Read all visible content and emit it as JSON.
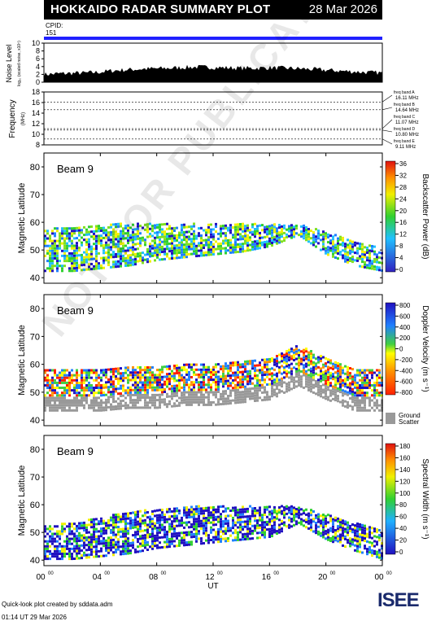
{
  "header": {
    "title": "HOKKAIDO RADAR SUMMARY PLOT",
    "date": "28 Mar 2026"
  },
  "cpid": {
    "label": "CPID:",
    "value": "151"
  },
  "noise": {
    "ylabel": "Noise Level",
    "ylabel_sub": "log₁₀ (scaled noise, x10⁵)",
    "ticks": [
      "0",
      "2",
      "4",
      "6",
      "8",
      "10"
    ]
  },
  "frequency": {
    "ylabel": "Frequency",
    "ylabel_unit": "(MHz)",
    "ticks": [
      "8",
      "10",
      "12",
      "14",
      "16",
      "18"
    ],
    "bands": [
      {
        "label": "freq band A",
        "value": "16.11 MHz",
        "mhz": 16.11
      },
      {
        "label": "freq band B",
        "value": "14.64 MHz",
        "mhz": 14.64
      },
      {
        "label": "freq band C",
        "value": "11.07 MHz",
        "mhz": 11.07
      },
      {
        "label": "freq band D",
        "value": "10.80 MHz",
        "mhz": 10.8
      },
      {
        "label": "freq band E",
        "value": "9.11 MHz",
        "mhz": 9.11
      }
    ]
  },
  "panels": [
    {
      "beam": "Beam  9",
      "ylabel": "Magnetic Latitude",
      "ticks": [
        "40",
        "50",
        "60",
        "70",
        "80"
      ],
      "cbar_label": "Backscatter Power  (dB)",
      "cbar_ticks": [
        "0",
        "4",
        "8",
        "12",
        "16",
        "20",
        "24",
        "28",
        "32",
        "36"
      ]
    },
    {
      "beam": "Beam  9",
      "ylabel": "Magnetic Latitude",
      "ticks": [
        "40",
        "50",
        "60",
        "70",
        "80"
      ],
      "cbar_label": "Doppler Velocity  (m s⁻¹)",
      "cbar_ticks": [
        "-800",
        "-600",
        "-400",
        "-200",
        "0",
        "200",
        "400",
        "600",
        "800"
      ],
      "ground_label_1": "Ground",
      "ground_label_2": "Scatter"
    },
    {
      "beam": "Beam  9",
      "ylabel": "Magnetic Latitude",
      "ticks": [
        "40",
        "50",
        "60",
        "70",
        "80"
      ],
      "cbar_label": "Spectral Width  (m s⁻¹)",
      "cbar_ticks": [
        "0",
        "20",
        "40",
        "60",
        "80",
        "100",
        "120",
        "140",
        "160",
        "180"
      ]
    }
  ],
  "xaxis": {
    "label": "UT",
    "ticks": [
      "00",
      "04",
      "08",
      "12",
      "16",
      "20",
      "00"
    ],
    "tick_sup": "00"
  },
  "footer": {
    "line1": "Quick-look plot created by sddata.adm",
    "line2": "01:14 UT 29 Mar 2026"
  },
  "logo": {
    "text": "ISEE"
  },
  "watermark": {
    "text": "NOT FOR PUBLICATION"
  },
  "colors": {
    "title_bg": "#000000",
    "cpid_bar": "#2020ff",
    "ground_scatter": "#999999"
  },
  "chart_data": [
    {
      "type": "area",
      "title": "Noise Level",
      "x_label": "UT",
      "xlim": [
        0,
        24
      ],
      "ylim": [
        0,
        10
      ],
      "x": [
        0,
        1,
        2,
        3,
        4,
        5,
        6,
        7,
        8,
        9,
        10,
        11,
        12,
        13,
        14,
        15,
        16,
        17,
        18,
        19,
        20,
        21,
        22,
        23,
        24
      ],
      "values": [
        2.0,
        2.2,
        2.3,
        2.4,
        2.6,
        3.0,
        3.2,
        3.4,
        3.5,
        3.6,
        3.8,
        3.9,
        3.8,
        3.7,
        3.6,
        3.6,
        3.7,
        3.6,
        3.5,
        3.3,
        3.1,
        2.9,
        2.7,
        2.5,
        2.4
      ]
    },
    {
      "type": "line",
      "title": "Frequency",
      "ylim": [
        8,
        18
      ],
      "series": [
        {
          "name": "freq band A",
          "values": [
            16.11
          ]
        },
        {
          "name": "freq band B",
          "values": [
            14.64
          ]
        },
        {
          "name": "freq band C",
          "values": [
            11.07
          ]
        },
        {
          "name": "freq band D",
          "values": [
            10.8
          ]
        },
        {
          "name": "freq band E",
          "values": [
            9.11
          ]
        }
      ]
    },
    {
      "type": "heatmap",
      "title": "Backscatter Power (dB)",
      "x_label": "UT",
      "y_label": "Magnetic Latitude",
      "xlim": [
        0,
        24
      ],
      "ylim": [
        38,
        85
      ],
      "zlim": [
        0,
        36
      ],
      "x": [
        0,
        2,
        4,
        6,
        8,
        10,
        12,
        14,
        16,
        18,
        20,
        22,
        24
      ],
      "echo_lower_lat": [
        42,
        42,
        43,
        44,
        46,
        47,
        48,
        49,
        51,
        55,
        48,
        44,
        42
      ],
      "echo_upper_lat": [
        57,
        58,
        59,
        59,
        59,
        59,
        59,
        59,
        59,
        59,
        56,
        53,
        50
      ]
    },
    {
      "type": "heatmap",
      "title": "Doppler Velocity (m s⁻¹)",
      "x_label": "UT",
      "y_label": "Magnetic Latitude",
      "xlim": [
        0,
        24
      ],
      "ylim": [
        38,
        85
      ],
      "zlim": [
        -800,
        800
      ],
      "x": [
        0,
        2,
        4,
        6,
        8,
        10,
        12,
        14,
        16,
        18,
        20,
        22,
        24
      ],
      "ground_scatter_lat": [
        46,
        46,
        46,
        47,
        47,
        48,
        48,
        49,
        50,
        55,
        50,
        46,
        46
      ]
    },
    {
      "type": "heatmap",
      "title": "Spectral Width (m s⁻¹)",
      "x_label": "UT",
      "y_label": "Magnetic Latitude",
      "xlim": [
        0,
        24
      ],
      "ylim": [
        38,
        85
      ],
      "zlim": [
        0,
        180
      ],
      "x": [
        0,
        2,
        4,
        6,
        8,
        10,
        12,
        14,
        16,
        18,
        20,
        22,
        24
      ],
      "echo_lower_lat": [
        40,
        40,
        41,
        42,
        44,
        45,
        46,
        47,
        48,
        53,
        47,
        43,
        40
      ],
      "echo_upper_lat": [
        52,
        53,
        55,
        57,
        58,
        59,
        59,
        59,
        59,
        59,
        56,
        53,
        50
      ]
    }
  ]
}
